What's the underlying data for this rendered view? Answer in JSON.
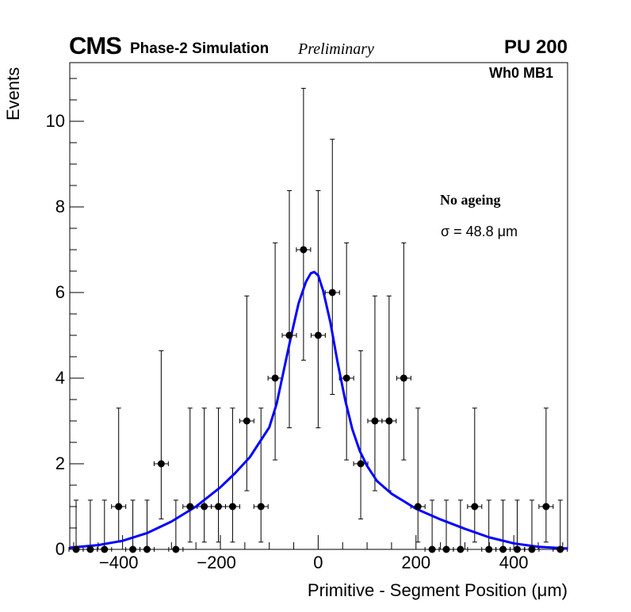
{
  "header": {
    "cms": "CMS",
    "sim": "Phase-2 Simulation",
    "prelim": "Preliminary",
    "pu": "PU 200",
    "region": "Wh0 MB1"
  },
  "annotations": {
    "ageing": "No ageing",
    "sigma": "σ = 48.8 μm"
  },
  "chart_data": {
    "type": "scatter",
    "title": "",
    "xlabel": "Primitive - Segment Position (μm)",
    "ylabel": "Events",
    "xlim": [
      -508,
      510
    ],
    "ylim": [
      0,
      11.37
    ],
    "xticks": [
      -400,
      -200,
      0,
      200,
      400
    ],
    "xtick_labels": [
      "−400",
      "−200",
      "0",
      "200",
      "400"
    ],
    "yticks": [
      0,
      2,
      4,
      6,
      8,
      10
    ],
    "ytick_labels": [
      "0",
      "2",
      "4",
      "6",
      "8",
      "10"
    ],
    "bin_width": 29.14,
    "x": [
      -495,
      -466,
      -437,
      -408,
      -379,
      -350,
      -321,
      -291,
      -262,
      -233,
      -204,
      -175,
      -146,
      -117,
      -88,
      -59,
      -30,
      0,
      29,
      58,
      87,
      116,
      145,
      175,
      204,
      233,
      262,
      291,
      320,
      349,
      378,
      407,
      437,
      466,
      495
    ],
    "values": [
      0,
      0,
      0,
      1,
      0,
      0,
      2,
      0,
      1,
      1,
      1,
      1,
      3,
      1,
      4,
      5,
      7,
      5,
      6,
      4,
      2,
      3,
      3,
      4,
      1,
      0,
      0,
      0,
      1,
      0,
      0,
      0,
      0,
      1,
      0
    ],
    "poisson_err_low": {
      "0": 0,
      "1": 0.83,
      "2": 1.29,
      "3": 1.63,
      "4": 1.91,
      "5": 2.16,
      "6": 2.38,
      "7": 2.58
    },
    "poisson_err_high": {
      "0": 1.15,
      "1": 2.3,
      "2": 2.64,
      "3": 2.92,
      "4": 3.16,
      "5": 3.38,
      "6": 3.58,
      "7": 3.77
    },
    "fit": {
      "name": "fit",
      "color": "#0000ff",
      "x": [
        -508,
        -450,
        -400,
        -350,
        -300,
        -250,
        -200,
        -170,
        -140,
        -120,
        -100,
        -85,
        -70,
        -55,
        -40,
        -25,
        -15,
        -8,
        0,
        10,
        25,
        40,
        55,
        70,
        85,
        100,
        120,
        150,
        200,
        250,
        300,
        350,
        400,
        450,
        510
      ],
      "y": [
        0.04,
        0.1,
        0.2,
        0.38,
        0.65,
        1.0,
        1.45,
        1.78,
        2.15,
        2.5,
        2.85,
        3.4,
        4.2,
        5.0,
        5.75,
        6.25,
        6.45,
        6.48,
        6.4,
        6.05,
        5.3,
        4.35,
        3.5,
        2.8,
        2.3,
        1.95,
        1.6,
        1.3,
        0.95,
        0.7,
        0.48,
        0.28,
        0.14,
        0.06,
        0.02
      ]
    }
  }
}
